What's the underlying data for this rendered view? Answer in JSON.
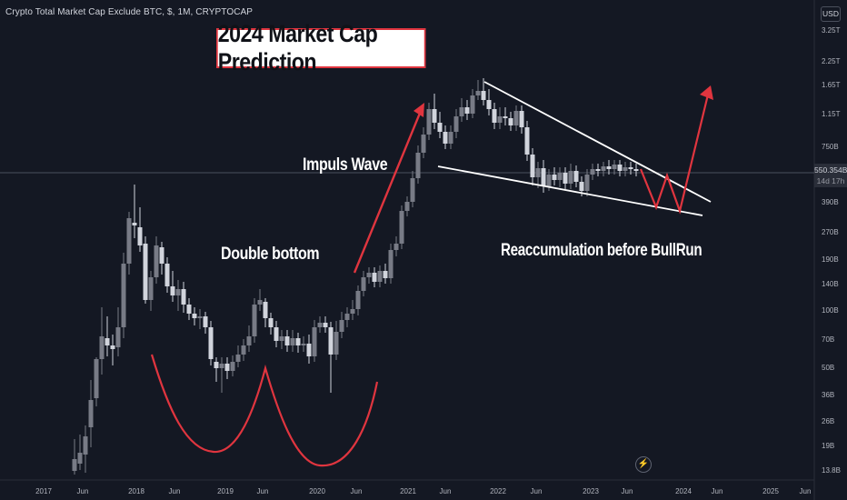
{
  "header": {
    "symbol_title": "Crypto Total Market Cap Exclude BTC, $, 1M, CRYPTOCAP",
    "currency": "USD"
  },
  "price_tag": {
    "value": "550.354B",
    "countdown": "14d 17h"
  },
  "annotations": {
    "title": "2024 Market Cap Prediction",
    "impulse": "Impuls Wave",
    "double_bottom": "Double bottom",
    "reaccumulation": "Reaccumulation before BullRun"
  },
  "icons": {
    "replay": "lightning-icon"
  },
  "colors": {
    "background": "#141823",
    "candle_up": "#787b86",
    "candle_down": "#d1d4dc",
    "annotation_red": "#e0353f",
    "trendline": "#ffffff"
  },
  "chart_data": {
    "type": "candlestick",
    "title": "Crypto Total Market Cap Exclude BTC",
    "interval": "1M",
    "y_scale": "log",
    "y_ticks": [
      "3.25T",
      "2.25T",
      "1.65T",
      "1.15T",
      "750B",
      "550.354B",
      "390B",
      "270B",
      "190B",
      "140B",
      "100B",
      "70B",
      "50B",
      "36B",
      "26B",
      "19B",
      "13.8B"
    ],
    "x_ticks": [
      "2017",
      "Jun",
      "2018",
      "Jun",
      "2019",
      "Jun",
      "2020",
      "Jun",
      "2021",
      "Jun",
      "2022",
      "Jun",
      "2023",
      "Jun",
      "2024",
      "Jun",
      "2025",
      "Jun"
    ],
    "last_price": "550.354B",
    "features": {
      "wedge": "falling wedge from 2022 top into 2023",
      "projected_path": "zig-zag down then breakout up into 2024",
      "pattern": "double bottom 2018-2020"
    }
  }
}
